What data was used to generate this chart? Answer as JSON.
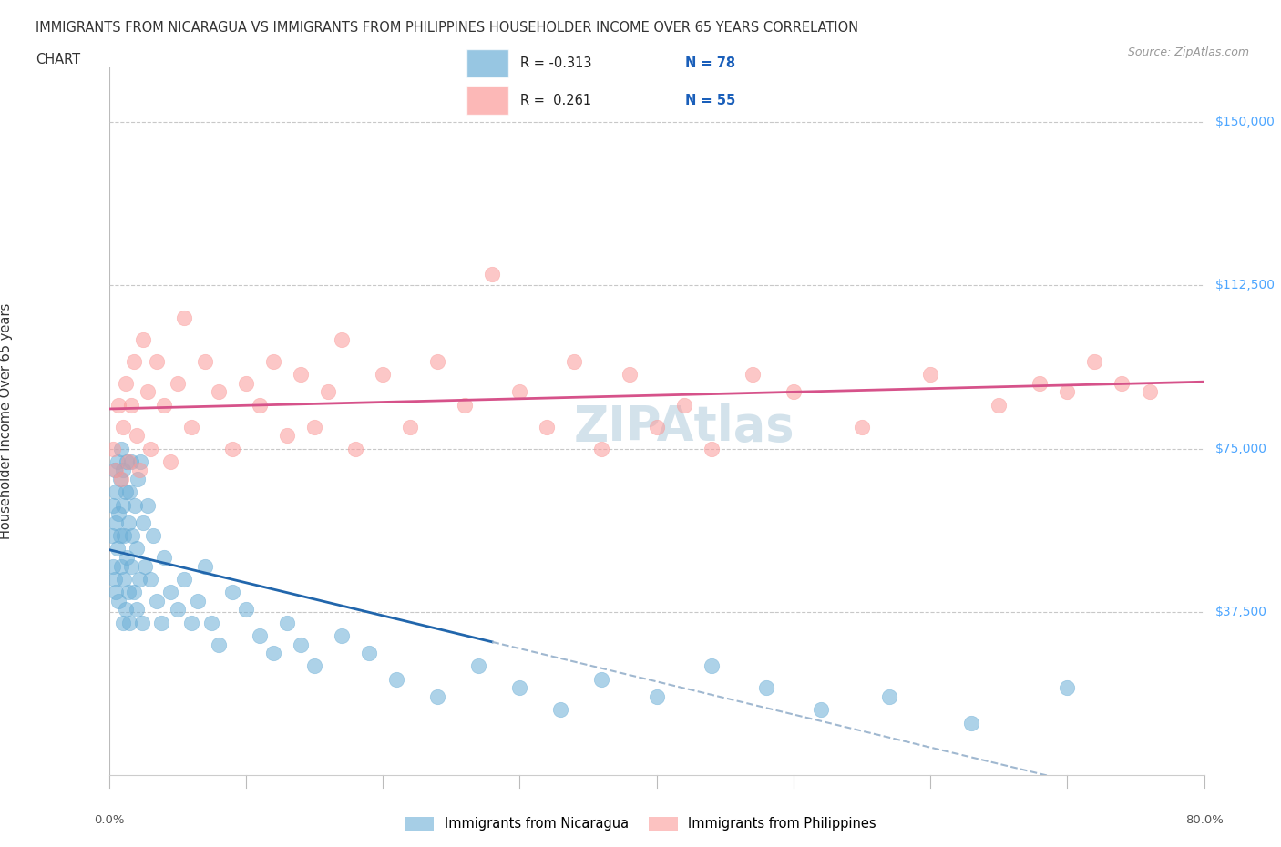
{
  "title_line1": "IMMIGRANTS FROM NICARAGUA VS IMMIGRANTS FROM PHILIPPINES HOUSEHOLDER INCOME OVER 65 YEARS CORRELATION",
  "title_line2": "CHART",
  "source": "Source: ZipAtlas.com",
  "ylabel": "Householder Income Over 65 years",
  "xlim": [
    0.0,
    80.0
  ],
  "ylim": [
    0,
    162500
  ],
  "yticks": [
    0,
    37500,
    75000,
    112500,
    150000
  ],
  "ytick_labels": [
    "",
    "$37,500",
    "$75,000",
    "$112,500",
    "$150,000"
  ],
  "nicaragua_R": -0.313,
  "nicaragua_N": 78,
  "philippines_R": 0.261,
  "philippines_N": 55,
  "nicaragua_color": "#6baed6",
  "nicaragua_edge_color": "#4292c6",
  "philippines_color": "#fb9a99",
  "philippines_edge_color": "#e31a1c",
  "nicaragua_line_color": "#2166ac",
  "philippines_line_color": "#d6528a",
  "dashed_line_color": "#a0b8d0",
  "background_color": "#ffffff",
  "grid_color": "#c8c8c8",
  "watermark_color": "#ccdde8",
  "legend_text_color": "#1a5fba",
  "title_color": "#333333",
  "source_color": "#999999",
  "tick_label_color": "#555555",
  "right_label_color": "#4da6ff",
  "nicaragua_scatter_x": [
    0.2,
    0.3,
    0.3,
    0.4,
    0.4,
    0.5,
    0.5,
    0.5,
    0.6,
    0.6,
    0.7,
    0.7,
    0.8,
    0.8,
    0.9,
    0.9,
    1.0,
    1.0,
    1.0,
    1.1,
    1.1,
    1.2,
    1.2,
    1.3,
    1.3,
    1.4,
    1.4,
    1.5,
    1.5,
    1.6,
    1.6,
    1.7,
    1.8,
    1.9,
    2.0,
    2.0,
    2.1,
    2.2,
    2.3,
    2.4,
    2.5,
    2.6,
    2.8,
    3.0,
    3.2,
    3.5,
    3.8,
    4.0,
    4.5,
    5.0,
    5.5,
    6.0,
    6.5,
    7.0,
    7.5,
    8.0,
    9.0,
    10.0,
    11.0,
    12.0,
    13.0,
    14.0,
    15.0,
    17.0,
    19.0,
    21.0,
    24.0,
    27.0,
    30.0,
    33.0,
    36.0,
    40.0,
    44.0,
    48.0,
    52.0,
    57.0,
    63.0,
    70.0
  ],
  "nicaragua_scatter_y": [
    55000,
    62000,
    48000,
    70000,
    45000,
    58000,
    65000,
    42000,
    72000,
    52000,
    60000,
    40000,
    68000,
    55000,
    75000,
    48000,
    62000,
    35000,
    70000,
    45000,
    55000,
    65000,
    38000,
    72000,
    50000,
    42000,
    58000,
    65000,
    35000,
    48000,
    72000,
    55000,
    42000,
    62000,
    52000,
    38000,
    68000,
    45000,
    72000,
    35000,
    58000,
    48000,
    62000,
    45000,
    55000,
    40000,
    35000,
    50000,
    42000,
    38000,
    45000,
    35000,
    40000,
    48000,
    35000,
    30000,
    42000,
    38000,
    32000,
    28000,
    35000,
    30000,
    25000,
    32000,
    28000,
    22000,
    18000,
    25000,
    20000,
    15000,
    22000,
    18000,
    25000,
    20000,
    15000,
    18000,
    12000,
    20000
  ],
  "philippines_scatter_x": [
    0.3,
    0.5,
    0.7,
    0.9,
    1.0,
    1.2,
    1.4,
    1.6,
    1.8,
    2.0,
    2.2,
    2.5,
    2.8,
    3.0,
    3.5,
    4.0,
    4.5,
    5.0,
    5.5,
    6.0,
    7.0,
    8.0,
    9.0,
    10.0,
    11.0,
    12.0,
    13.0,
    14.0,
    15.0,
    16.0,
    17.0,
    18.0,
    20.0,
    22.0,
    24.0,
    26.0,
    28.0,
    30.0,
    32.0,
    34.0,
    36.0,
    38.0,
    40.0,
    42.0,
    44.0,
    47.0,
    50.0,
    55.0,
    60.0,
    65.0,
    68.0,
    70.0,
    72.0,
    74.0,
    76.0
  ],
  "philippines_scatter_y": [
    75000,
    70000,
    85000,
    68000,
    80000,
    90000,
    72000,
    85000,
    95000,
    78000,
    70000,
    100000,
    88000,
    75000,
    95000,
    85000,
    72000,
    90000,
    105000,
    80000,
    95000,
    88000,
    75000,
    90000,
    85000,
    95000,
    78000,
    92000,
    80000,
    88000,
    100000,
    75000,
    92000,
    80000,
    95000,
    85000,
    115000,
    88000,
    80000,
    95000,
    75000,
    92000,
    80000,
    85000,
    75000,
    92000,
    88000,
    80000,
    92000,
    85000,
    90000,
    88000,
    95000,
    90000,
    88000
  ]
}
